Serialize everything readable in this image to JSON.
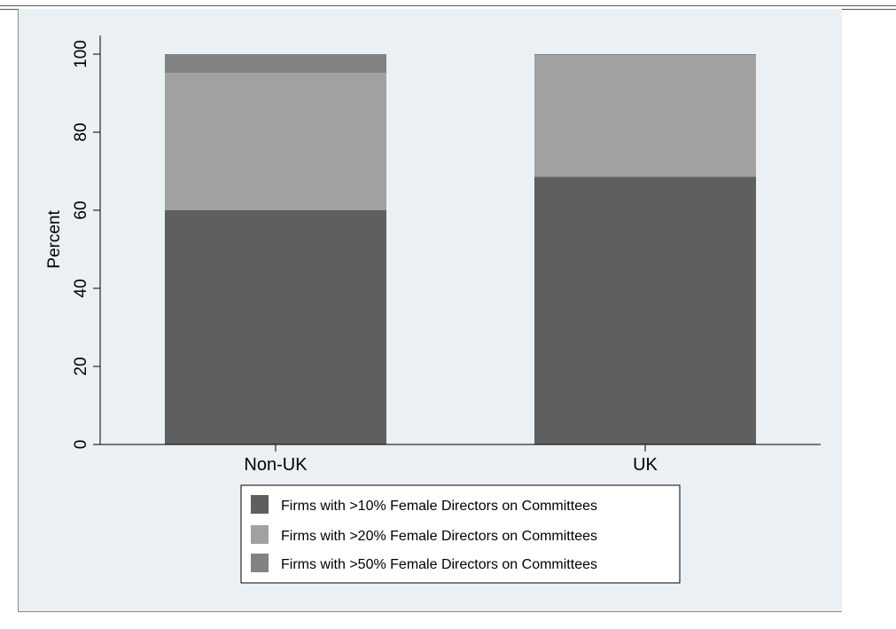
{
  "chart_data": {
    "type": "bar",
    "stacked": true,
    "categories": [
      "Non-UK",
      "UK"
    ],
    "series": [
      {
        "name": "Firms with >10% Female Directors on Committees",
        "values": [
          60,
          68.6
        ],
        "color": "#5f5f5f"
      },
      {
        "name": "Firms with >20% Female Directors on Committees",
        "values": [
          35.2,
          31.1
        ],
        "color": "#a1a1a1"
      },
      {
        "name": "Firms with >50% Female Directors on Committees",
        "values": [
          4.8,
          0.3
        ],
        "color": "#828282"
      }
    ],
    "ylabel": "Percent",
    "xlabel": "",
    "ylim": [
      0,
      100
    ],
    "yticks": [
      0,
      20,
      40,
      60,
      80,
      100
    ],
    "grid": false,
    "legend_position": "bottom",
    "plot_background": "#eaf0f3"
  }
}
